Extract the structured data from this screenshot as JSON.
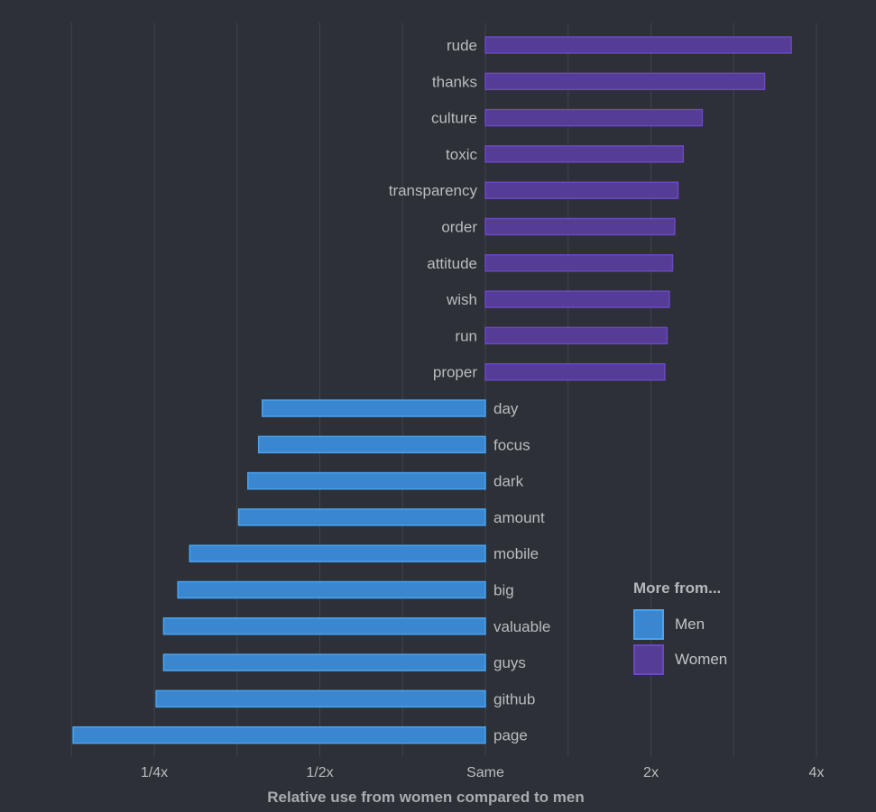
{
  "chart_data": {
    "type": "bar",
    "orientation": "horizontal",
    "log_scale": true,
    "xlabel": "Relative use from women compared to men",
    "xticks": [
      {
        "value": 0.25,
        "label": "1/4x"
      },
      {
        "value": 0.5,
        "label": "1/2x"
      },
      {
        "value": 1,
        "label": "Same"
      },
      {
        "value": 2,
        "label": "2x"
      },
      {
        "value": 4,
        "label": "4x"
      }
    ],
    "xlim": [
      0.177,
      4.0
    ],
    "grid": true,
    "categories": [
      "rude",
      "thanks",
      "culture",
      "toxic",
      "transparency",
      "order",
      "attitude",
      "wish",
      "run",
      "proper",
      "day",
      "focus",
      "dark",
      "amount",
      "mobile",
      "big",
      "valuable",
      "guys",
      "github",
      "page"
    ],
    "values": [
      3.6,
      3.22,
      2.48,
      2.29,
      2.24,
      2.21,
      2.19,
      2.16,
      2.14,
      2.12,
      0.393,
      0.387,
      0.37,
      0.356,
      0.29,
      0.276,
      0.26,
      0.26,
      0.252,
      0.178
    ],
    "group": [
      "Women",
      "Women",
      "Women",
      "Women",
      "Women",
      "Women",
      "Women",
      "Women",
      "Women",
      "Women",
      "Men",
      "Men",
      "Men",
      "Men",
      "Men",
      "Men",
      "Men",
      "Men",
      "Men",
      "Men"
    ],
    "colors": {
      "Men": "#3a87cf",
      "Men_edge": "#4aa3f0",
      "Women": "#553c95",
      "Women_edge": "#6a48c2"
    },
    "legend": {
      "title": "More from...",
      "placement": "bottom-right",
      "items": [
        {
          "label": "Men",
          "group": "Men"
        },
        {
          "label": "Women",
          "group": "Women"
        }
      ]
    }
  }
}
